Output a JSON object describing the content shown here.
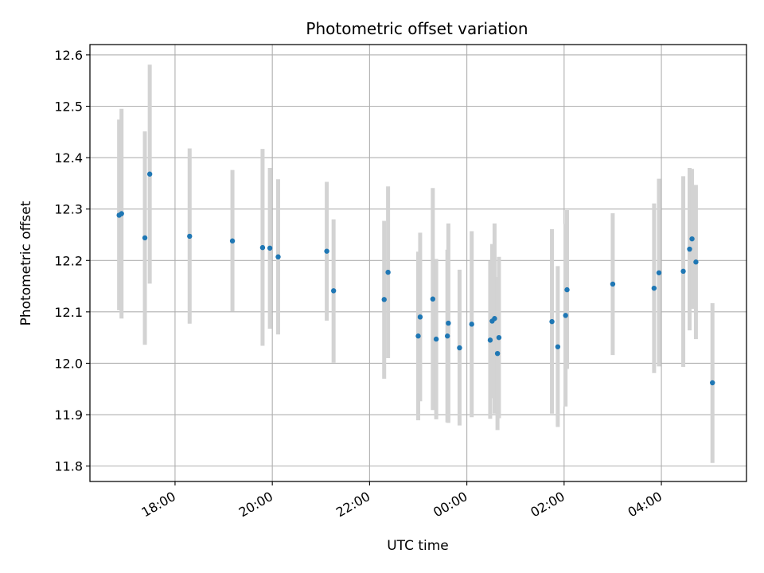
{
  "chart_data": {
    "type": "scatter",
    "title": "Photometric offset variation",
    "xlabel": "UTC time",
    "ylabel": "Photometric offset",
    "x_unit": "UTC hours (values past 24 continue into the next day)",
    "xlim": [
      16.25,
      29.75
    ],
    "ylim": [
      11.77,
      12.62
    ],
    "x_ticks": [
      {
        "value": 18,
        "label": "18:00"
      },
      {
        "value": 20,
        "label": "20:00"
      },
      {
        "value": 22,
        "label": "22:00"
      },
      {
        "value": 24,
        "label": "00:00"
      },
      {
        "value": 26,
        "label": "02:00"
      },
      {
        "value": 28,
        "label": "04:00"
      }
    ],
    "y_ticks": [
      {
        "value": 11.8,
        "label": "11.8"
      },
      {
        "value": 11.9,
        "label": "11.9"
      },
      {
        "value": 12.0,
        "label": "12.0"
      },
      {
        "value": 12.1,
        "label": "12.1"
      },
      {
        "value": 12.2,
        "label": "12.2"
      },
      {
        "value": 12.3,
        "label": "12.3"
      },
      {
        "value": 12.4,
        "label": "12.4"
      },
      {
        "value": 12.5,
        "label": "12.5"
      },
      {
        "value": 12.6,
        "label": "12.6"
      }
    ],
    "grid": true,
    "marker_color": "#1f77b4",
    "errorbar_color": "#d3d3d3",
    "points": [
      {
        "x": 16.85,
        "y": 12.288,
        "err_low": 12.103,
        "err_high": 12.474
      },
      {
        "x": 16.9,
        "y": 12.291,
        "err_low": 12.087,
        "err_high": 12.495
      },
      {
        "x": 17.38,
        "y": 12.244,
        "err_low": 12.036,
        "err_high": 12.451
      },
      {
        "x": 17.48,
        "y": 12.368,
        "err_low": 12.155,
        "err_high": 12.581
      },
      {
        "x": 18.3,
        "y": 12.247,
        "err_low": 12.077,
        "err_high": 12.418
      },
      {
        "x": 19.18,
        "y": 12.238,
        "err_low": 12.101,
        "err_high": 12.376
      },
      {
        "x": 19.8,
        "y": 12.225,
        "err_low": 12.034,
        "err_high": 12.417
      },
      {
        "x": 19.95,
        "y": 12.224,
        "err_low": 12.067,
        "err_high": 12.38
      },
      {
        "x": 20.12,
        "y": 12.207,
        "err_low": 12.056,
        "err_high": 12.358
      },
      {
        "x": 21.12,
        "y": 12.218,
        "err_low": 12.083,
        "err_high": 12.353
      },
      {
        "x": 21.26,
        "y": 12.141,
        "err_low": 12.001,
        "err_high": 12.28
      },
      {
        "x": 22.3,
        "y": 12.124,
        "err_low": 11.97,
        "err_high": 12.277
      },
      {
        "x": 22.38,
        "y": 12.177,
        "err_low": 12.01,
        "err_high": 12.344
      },
      {
        "x": 23.0,
        "y": 12.053,
        "err_low": 11.889,
        "err_high": 12.217
      },
      {
        "x": 23.04,
        "y": 12.09,
        "err_low": 11.926,
        "err_high": 12.254
      },
      {
        "x": 23.3,
        "y": 12.125,
        "err_low": 11.909,
        "err_high": 12.341
      },
      {
        "x": 23.37,
        "y": 12.047,
        "err_low": 11.891,
        "err_high": 12.203
      },
      {
        "x": 23.6,
        "y": 12.053,
        "err_low": 11.885,
        "err_high": 12.221
      },
      {
        "x": 23.62,
        "y": 12.078,
        "err_low": 11.884,
        "err_high": 12.272
      },
      {
        "x": 23.85,
        "y": 12.03,
        "err_low": 11.879,
        "err_high": 12.182
      },
      {
        "x": 24.1,
        "y": 12.076,
        "err_low": 11.895,
        "err_high": 12.257
      },
      {
        "x": 24.48,
        "y": 12.045,
        "err_low": 11.892,
        "err_high": 12.199
      },
      {
        "x": 24.52,
        "y": 12.082,
        "err_low": 11.932,
        "err_high": 12.232
      },
      {
        "x": 24.57,
        "y": 12.087,
        "err_low": 11.902,
        "err_high": 12.272
      },
      {
        "x": 24.63,
        "y": 12.019,
        "err_low": 11.87,
        "err_high": 12.168
      },
      {
        "x": 24.66,
        "y": 12.05,
        "err_low": 11.893,
        "err_high": 12.207
      },
      {
        "x": 25.75,
        "y": 12.081,
        "err_low": 11.902,
        "err_high": 12.261
      },
      {
        "x": 25.87,
        "y": 12.032,
        "err_low": 11.876,
        "err_high": 12.189
      },
      {
        "x": 26.03,
        "y": 12.093,
        "err_low": 11.916,
        "err_high": 12.271
      },
      {
        "x": 26.06,
        "y": 12.143,
        "err_low": 11.989,
        "err_high": 12.298
      },
      {
        "x": 27.0,
        "y": 12.154,
        "err_low": 12.016,
        "err_high": 12.292
      },
      {
        "x": 27.85,
        "y": 12.146,
        "err_low": 11.981,
        "err_high": 12.311
      },
      {
        "x": 27.95,
        "y": 12.176,
        "err_low": 11.994,
        "err_high": 12.359
      },
      {
        "x": 28.45,
        "y": 12.179,
        "err_low": 11.993,
        "err_high": 12.364
      },
      {
        "x": 28.58,
        "y": 12.222,
        "err_low": 12.064,
        "err_high": 12.38
      },
      {
        "x": 28.63,
        "y": 12.242,
        "err_low": 12.106,
        "err_high": 12.378
      },
      {
        "x": 28.71,
        "y": 12.197,
        "err_low": 12.047,
        "err_high": 12.347
      },
      {
        "x": 29.05,
        "y": 11.962,
        "err_low": 11.806,
        "err_high": 12.117
      }
    ]
  }
}
